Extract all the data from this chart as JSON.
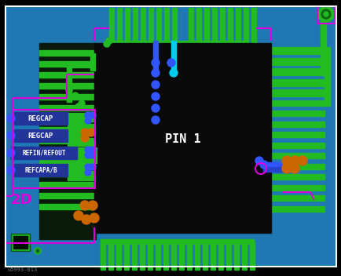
{
  "bg_color": "#000000",
  "green": "#22bb22",
  "dark_green": "#116611",
  "blue": "#3355ff",
  "dark_blue": "#223399",
  "orange": "#cc6600",
  "magenta": "#dd00dd",
  "cyan": "#00ccee",
  "white": "#ffffff",
  "gray": "#777777",
  "pin1_text": "PIN 1",
  "labels": [
    [
      "REGCAP",
      15,
      218,
      65,
      17
    ],
    [
      "REGCAP",
      15,
      196,
      65,
      17
    ],
    [
      "REFIN/REFOUT",
      12,
      174,
      82,
      17
    ],
    [
      "REFCAPA/B",
      13,
      152,
      72,
      17
    ]
  ],
  "bottom_text": "G5993-013",
  "fig_width": 4.35,
  "fig_height": 3.52,
  "dpi": 100
}
